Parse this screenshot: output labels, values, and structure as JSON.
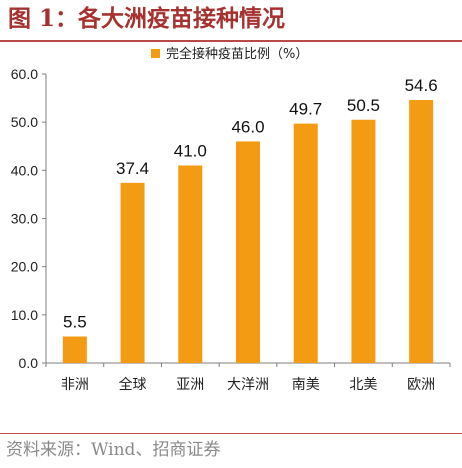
{
  "header": {
    "title": "图 1：各大洲疫苗接种情况"
  },
  "footer": {
    "source": "资料来源：Wind、招商证券"
  },
  "colors": {
    "bar": "#f39b13",
    "title": "#a6322f",
    "rule": "#c0504d",
    "axis": "#7f7f7f"
  },
  "chart_data": {
    "type": "bar",
    "title": "",
    "xlabel": "",
    "ylabel": "",
    "ylim": [
      0,
      60
    ],
    "yticks": [
      "0.0",
      "10.0",
      "20.0",
      "30.0",
      "40.0",
      "50.0",
      "60.0"
    ],
    "categories": [
      "非洲",
      "全球",
      "亚洲",
      "大洋洲",
      "南美",
      "北美",
      "欧洲"
    ],
    "series": [
      {
        "name": "完全接种疫苗比例（%）",
        "values": [
          5.5,
          37.4,
          41.0,
          46.0,
          49.7,
          50.5,
          54.6
        ],
        "labels": [
          "5.5",
          "37.4",
          "41.0",
          "46.0",
          "49.7",
          "50.5",
          "54.6"
        ]
      }
    ],
    "legend_position": "top-center",
    "grid": false
  }
}
